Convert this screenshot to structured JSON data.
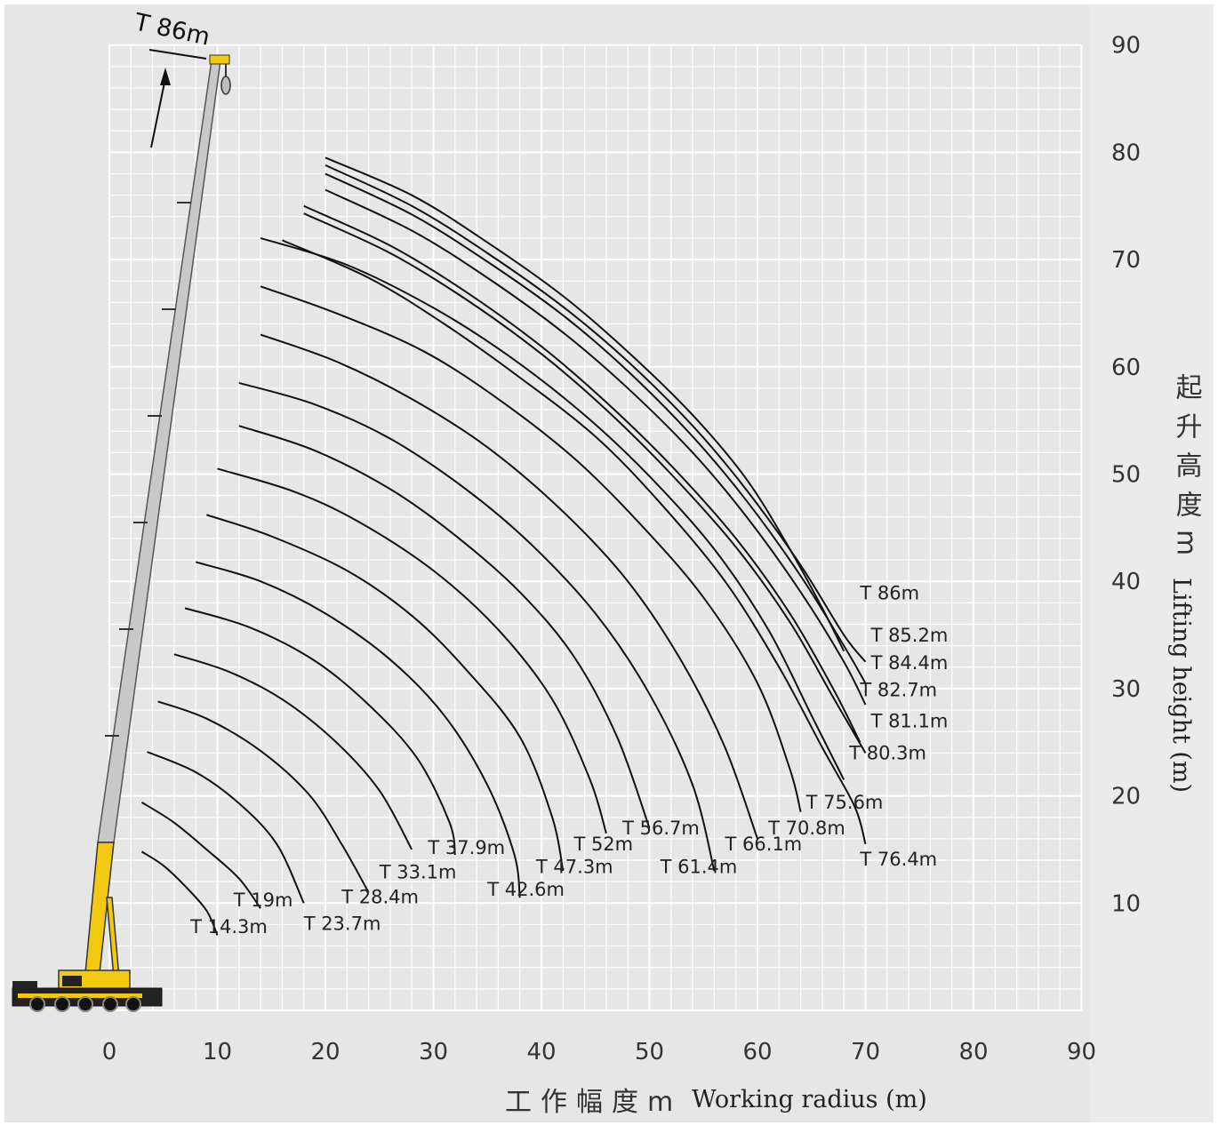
{
  "chart_data": {
    "type": "line",
    "xlabel_cn": "工作幅度m",
    "xlabel_en": "Working radius (m)",
    "ylabel_cn": "起升高度m",
    "ylabel_en": "Lifting height (m)",
    "xlim": [
      -10,
      90
    ],
    "ylim": [
      0,
      90
    ],
    "x_ticks": [
      0,
      10,
      20,
      30,
      40,
      50,
      60,
      70,
      80,
      90
    ],
    "y_ticks": [
      10,
      20,
      30,
      40,
      50,
      60,
      70,
      80,
      90
    ],
    "grid": true,
    "boom_label": "T 86m",
    "series": [
      {
        "name": "T 14.3m",
        "points": [
          [
            3,
            14.8
          ],
          [
            5,
            13.5
          ],
          [
            7,
            11.6
          ],
          [
            9,
            9.3
          ],
          [
            10,
            7.0
          ]
        ]
      },
      {
        "name": "T 19m",
        "points": [
          [
            3,
            19.4
          ],
          [
            6,
            17.5
          ],
          [
            9,
            15.0
          ],
          [
            12,
            12.3
          ],
          [
            14,
            9.5
          ]
        ]
      },
      {
        "name": "T 23.7m",
        "points": [
          [
            3.5,
            24.1
          ],
          [
            8,
            22.2
          ],
          [
            12,
            19.3
          ],
          [
            15.5,
            15.5
          ],
          [
            18,
            10.0
          ]
        ]
      },
      {
        "name": "T 28.4m",
        "points": [
          [
            4.5,
            28.8
          ],
          [
            9,
            27.2
          ],
          [
            14,
            24.2
          ],
          [
            18.5,
            20.1
          ],
          [
            21.5,
            15.5
          ],
          [
            24,
            11.0
          ]
        ]
      },
      {
        "name": "T 33.1m",
        "points": [
          [
            6,
            33.2
          ],
          [
            11,
            31.6
          ],
          [
            16,
            29.0
          ],
          [
            21,
            25.0
          ],
          [
            25,
            20.5
          ],
          [
            28,
            15.0
          ]
        ]
      },
      {
        "name": "T 37.9m",
        "points": [
          [
            7,
            37.5
          ],
          [
            13,
            35.7
          ],
          [
            19,
            32.6
          ],
          [
            24,
            28.5
          ],
          [
            28.5,
            23.5
          ],
          [
            31.5,
            17.5
          ],
          [
            32,
            14.5
          ]
        ]
      },
      {
        "name": "T 42.6m",
        "points": [
          [
            8,
            41.8
          ],
          [
            14,
            40.0
          ],
          [
            20,
            37.0
          ],
          [
            26,
            32.7
          ],
          [
            31,
            27.5
          ],
          [
            35,
            21.0
          ],
          [
            37.5,
            14.5
          ],
          [
            38,
            10.5
          ]
        ]
      },
      {
        "name": "T 47.3m",
        "points": [
          [
            9,
            46.2
          ],
          [
            15,
            44.2
          ],
          [
            22,
            41.0
          ],
          [
            28,
            36.8
          ],
          [
            33,
            31.8
          ],
          [
            38,
            25.5
          ],
          [
            41,
            18.0
          ],
          [
            42,
            13.0
          ]
        ]
      },
      {
        "name": "T 52m",
        "points": [
          [
            10,
            50.5
          ],
          [
            17,
            48.4
          ],
          [
            23,
            45.6
          ],
          [
            30,
            41.0
          ],
          [
            36,
            35.5
          ],
          [
            41,
            29.0
          ],
          [
            44.5,
            21.5
          ],
          [
            46,
            16.5
          ]
        ]
      },
      {
        "name": "T 56.7m",
        "points": [
          [
            12,
            54.5
          ],
          [
            19,
            52.2
          ],
          [
            26,
            48.6
          ],
          [
            32,
            44.3
          ],
          [
            38,
            39.0
          ],
          [
            43,
            33.0
          ],
          [
            47,
            25.5
          ],
          [
            50,
            17.0
          ]
        ]
      },
      {
        "name": "T 61.4m",
        "points": [
          [
            12,
            58.5
          ],
          [
            19,
            56.5
          ],
          [
            26,
            53.3
          ],
          [
            33,
            48.6
          ],
          [
            39,
            43.5
          ],
          [
            45,
            37.0
          ],
          [
            50,
            29.5
          ],
          [
            54,
            21.0
          ],
          [
            56,
            13.0
          ]
        ]
      },
      {
        "name": "T 66.1m",
        "points": [
          [
            14,
            63.0
          ],
          [
            21,
            60.5
          ],
          [
            28,
            57.0
          ],
          [
            35,
            52.5
          ],
          [
            42,
            46.5
          ],
          [
            48,
            40.0
          ],
          [
            53,
            32.5
          ],
          [
            57,
            24.5
          ],
          [
            60,
            16.0
          ]
        ]
      },
      {
        "name": "T 70.8m",
        "points": [
          [
            14,
            67.5
          ],
          [
            21,
            65.0
          ],
          [
            29,
            61.5
          ],
          [
            36,
            57.0
          ],
          [
            43,
            51.5
          ],
          [
            49,
            45.5
          ],
          [
            55,
            38.5
          ],
          [
            60,
            30.5
          ],
          [
            63,
            22.5
          ],
          [
            64,
            18.5
          ]
        ]
      },
      {
        "name": "T 75.6m",
        "points": [
          [
            14,
            72.0
          ],
          [
            22,
            69.5
          ],
          [
            30,
            65.5
          ],
          [
            37,
            61.0
          ],
          [
            44,
            55.5
          ],
          [
            50,
            49.8
          ],
          [
            56,
            43.0
          ],
          [
            61,
            35.5
          ],
          [
            65,
            27.5
          ],
          [
            68,
            21.5
          ]
        ]
      },
      {
        "name": "T 76.4m",
        "points": [
          [
            16,
            71.8
          ],
          [
            24,
            68.3
          ],
          [
            31,
            64.0
          ],
          [
            38,
            59.0
          ],
          [
            45,
            53.5
          ],
          [
            51,
            47.3
          ],
          [
            57,
            40.0
          ],
          [
            62,
            32.0
          ],
          [
            66,
            24.5
          ],
          [
            69,
            19.0
          ],
          [
            70,
            15.5
          ]
        ]
      },
      {
        "name": "T 80.3m",
        "points": [
          [
            18,
            75.0
          ],
          [
            26,
            71.3
          ],
          [
            33,
            67.0
          ],
          [
            40,
            61.9
          ],
          [
            46,
            56.7
          ],
          [
            52,
            50.8
          ],
          [
            58,
            44.0
          ],
          [
            63,
            37.0
          ],
          [
            67,
            30.0
          ],
          [
            69.5,
            25.0
          ]
        ]
      },
      {
        "name": "T 81.1m",
        "points": [
          [
            18,
            74.3
          ],
          [
            26,
            70.6
          ],
          [
            33,
            66.3
          ],
          [
            40,
            61.2
          ],
          [
            46,
            56.0
          ],
          [
            52,
            50.0
          ],
          [
            58,
            43.2
          ],
          [
            63,
            36.2
          ],
          [
            67,
            29.2
          ],
          [
            70,
            24.0
          ]
        ]
      },
      {
        "name": "T 82.7m",
        "points": [
          [
            20,
            76.5
          ],
          [
            28,
            72.7
          ],
          [
            35,
            68.3
          ],
          [
            42,
            63.2
          ],
          [
            48,
            58.0
          ],
          [
            54,
            52.0
          ],
          [
            59,
            46.0
          ],
          [
            64,
            39.0
          ],
          [
            68,
            32.5
          ],
          [
            70,
            28.5
          ]
        ]
      },
      {
        "name": "T 84.4m",
        "points": [
          [
            20,
            78.0
          ],
          [
            28,
            74.2
          ],
          [
            35,
            69.8
          ],
          [
            42,
            64.8
          ],
          [
            48,
            59.6
          ],
          [
            54,
            53.5
          ],
          [
            59,
            47.5
          ],
          [
            64,
            40.5
          ],
          [
            68,
            34.0
          ],
          [
            70,
            30.5
          ]
        ]
      },
      {
        "name": "T 85.2m",
        "points": [
          [
            20,
            78.8
          ],
          [
            28,
            75.0
          ],
          [
            35,
            70.6
          ],
          [
            42,
            65.6
          ],
          [
            48,
            60.5
          ],
          [
            54,
            54.5
          ],
          [
            59,
            48.5
          ],
          [
            64,
            41.5
          ],
          [
            68,
            35.0
          ],
          [
            70,
            32.5
          ]
        ]
      },
      {
        "name": "T 86m",
        "points": [
          [
            20,
            79.5
          ],
          [
            28,
            76.0
          ],
          [
            35,
            71.6
          ],
          [
            42,
            66.6
          ],
          [
            48,
            61.4
          ],
          [
            54,
            55.5
          ],
          [
            59,
            49.5
          ],
          [
            63,
            43.0
          ],
          [
            66,
            37.5
          ],
          [
            68,
            33.5
          ]
        ]
      }
    ],
    "label_anchors": [
      [
        7.5,
        7.2
      ],
      [
        11.5,
        9.7
      ],
      [
        18,
        7.5
      ],
      [
        21.5,
        10.0
      ],
      [
        25,
        12.3
      ],
      [
        29.5,
        14.6
      ],
      [
        35,
        10.7
      ],
      [
        39.5,
        12.8
      ],
      [
        43,
        14.9
      ],
      [
        47.5,
        16.4
      ],
      [
        51,
        12.8
      ],
      [
        57,
        14.9
      ],
      [
        61,
        16.4
      ],
      [
        64.5,
        18.8
      ],
      [
        69.5,
        13.5
      ],
      [
        68.5,
        23.4
      ],
      [
        70.5,
        26.4
      ],
      [
        69.5,
        29.3
      ],
      [
        70.5,
        31.8
      ],
      [
        70.5,
        34.4
      ],
      [
        69.5,
        38.3
      ]
    ],
    "colors": {
      "background": "#e6e6e6",
      "grid": "#ffffff",
      "curve": "#111111",
      "boom_gray": "#c8c8c8",
      "boom_yellow": "#f2c811",
      "crane_dark": "#222222"
    }
  }
}
